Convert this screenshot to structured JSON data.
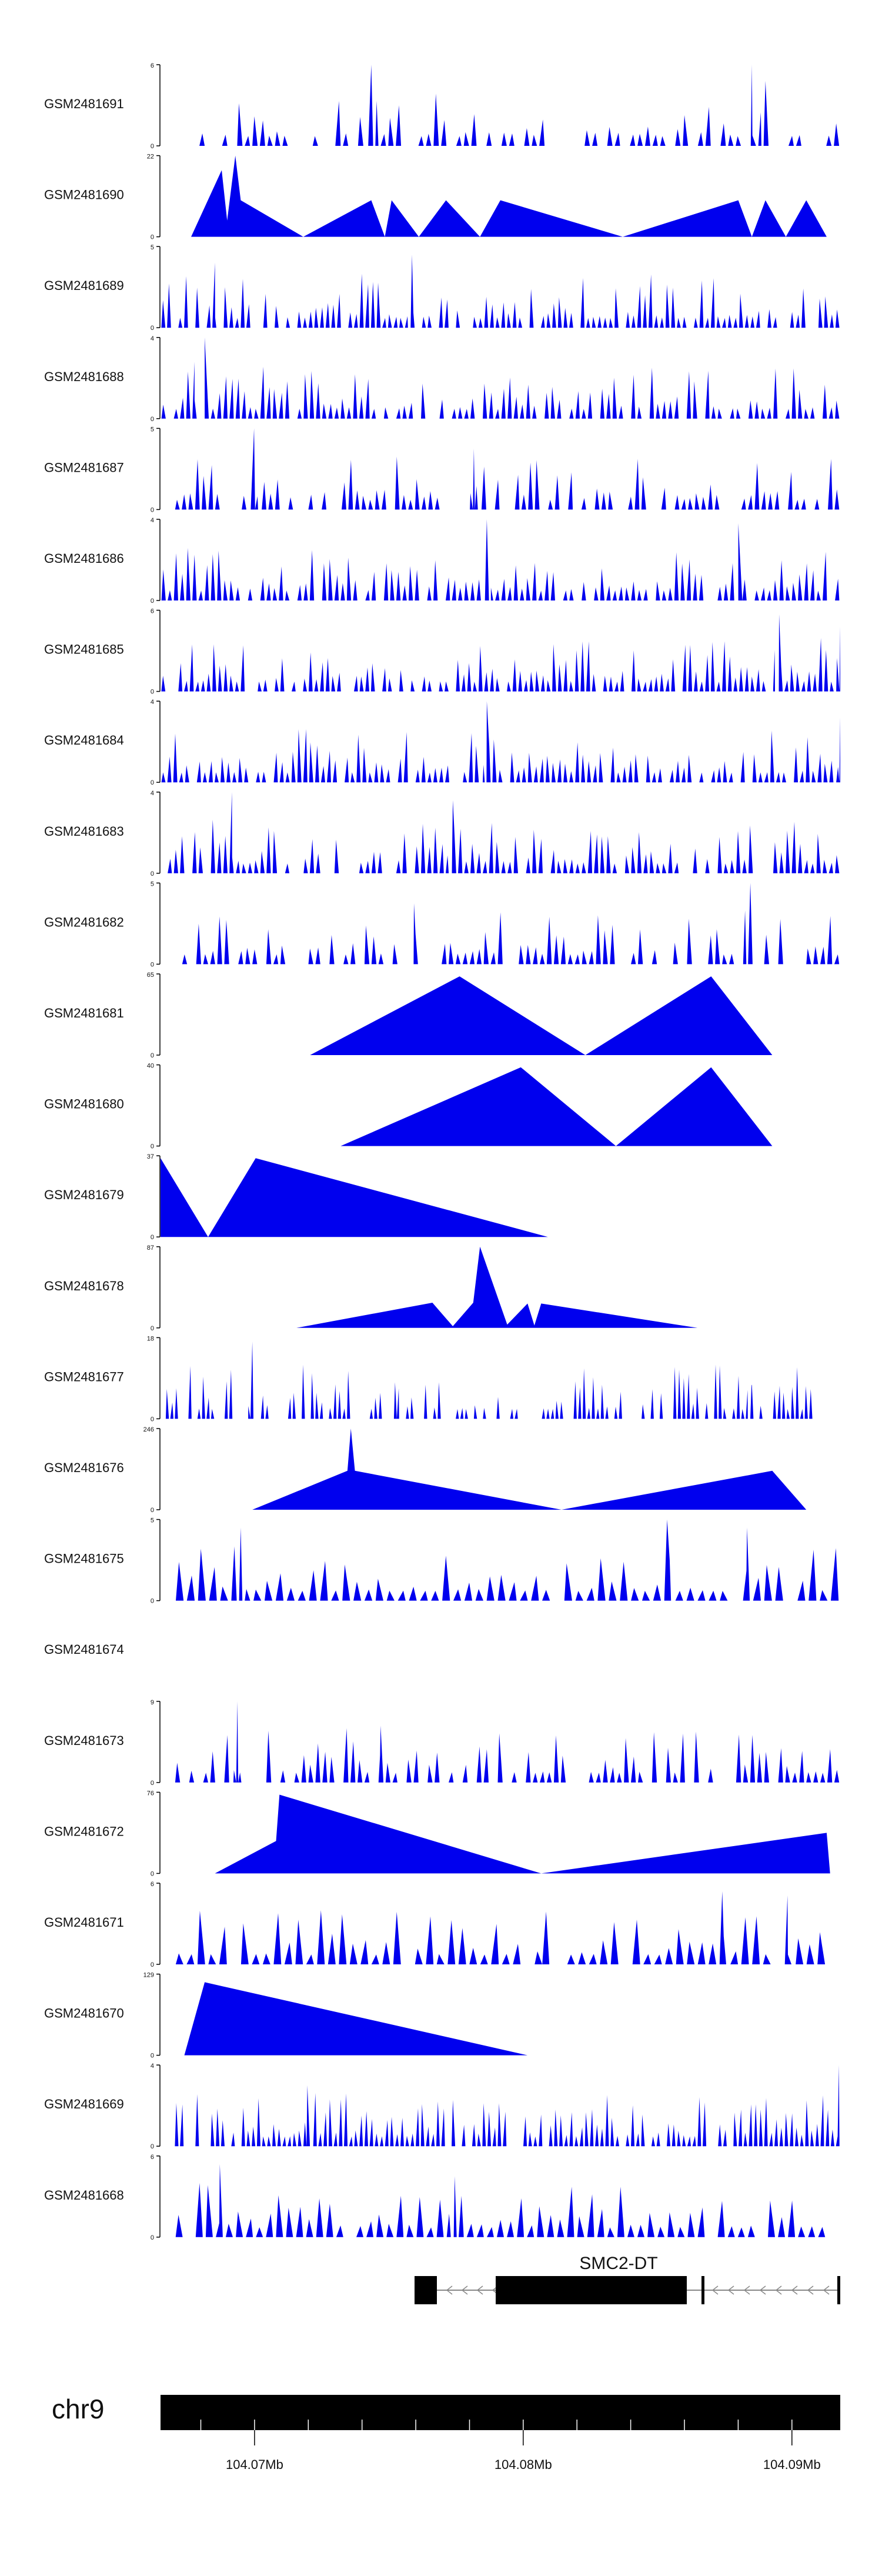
{
  "chart_data": {
    "type": "area",
    "title": "",
    "genome": "chr9",
    "colors": {
      "signal": "#0000ee",
      "axis": "#000000",
      "text": "#111111",
      "gene": "#000000"
    },
    "x_range_mb": [
      104.0665,
      104.0918
    ],
    "x_ticks": [
      104.07,
      104.08,
      104.09
    ],
    "x_tick_labels": [
      "104.07Mb",
      "104.08Mb",
      "104.09Mb"
    ],
    "gene_label": "SMC2-DT",
    "tracks": [
      {
        "id": "GSM2481691",
        "max": 6,
        "y_ticks": [
          "6",
          "0"
        ]
      },
      {
        "id": "GSM2481690",
        "max": 22,
        "y_ticks": [
          "22",
          "0"
        ]
      },
      {
        "id": "GSM2481689",
        "max": 5,
        "y_ticks": [
          "5",
          "0"
        ]
      },
      {
        "id": "GSM2481688",
        "max": 4,
        "y_ticks": [
          "4",
          "0"
        ]
      },
      {
        "id": "GSM2481687",
        "max": 5,
        "y_ticks": [
          "5",
          "0"
        ]
      },
      {
        "id": "GSM2481686",
        "max": 4,
        "y_ticks": [
          "4",
          "0"
        ]
      },
      {
        "id": "GSM2481685",
        "max": 6,
        "y_ticks": [
          "6",
          "0"
        ]
      },
      {
        "id": "GSM2481684",
        "max": 4,
        "y_ticks": [
          "4",
          "0"
        ]
      },
      {
        "id": "GSM2481683",
        "max": 4,
        "y_ticks": [
          "4",
          "0"
        ]
      },
      {
        "id": "GSM2481682",
        "max": 5,
        "y_ticks": [
          "5",
          "0"
        ]
      },
      {
        "id": "GSM2481681",
        "max": 65,
        "y_ticks": [
          "65",
          "0"
        ]
      },
      {
        "id": "GSM2481680",
        "max": 40,
        "y_ticks": [
          "40",
          "0"
        ]
      },
      {
        "id": "GSM2481679",
        "max": 37,
        "y_ticks": [
          "37",
          "0"
        ]
      },
      {
        "id": "GSM2481678",
        "max": 87,
        "y_ticks": [
          "87",
          "0"
        ]
      },
      {
        "id": "GSM2481677",
        "max": 18,
        "y_ticks": [
          "18",
          "0"
        ]
      },
      {
        "id": "GSM2481676",
        "max": 246,
        "y_ticks": [
          "246",
          "0"
        ]
      },
      {
        "id": "GSM2481675",
        "max": 5,
        "y_ticks": [
          "5",
          "0"
        ]
      },
      {
        "id": "GSM2481674",
        "max": 0,
        "y_ticks": []
      },
      {
        "id": "GSM2481673",
        "max": 9,
        "y_ticks": [
          "9",
          "0"
        ]
      },
      {
        "id": "GSM2481672",
        "max": 76,
        "y_ticks": [
          "76",
          "0"
        ]
      },
      {
        "id": "GSM2481671",
        "max": 6,
        "y_ticks": [
          "6",
          "0"
        ]
      },
      {
        "id": "GSM2481670",
        "max": 129,
        "y_ticks": [
          "129",
          "0"
        ]
      },
      {
        "id": "GSM2481669",
        "max": 4,
        "y_ticks": [
          "4",
          "0"
        ]
      },
      {
        "id": "GSM2481668",
        "max": 6,
        "y_ticks": [
          "6",
          "0"
        ]
      }
    ]
  }
}
